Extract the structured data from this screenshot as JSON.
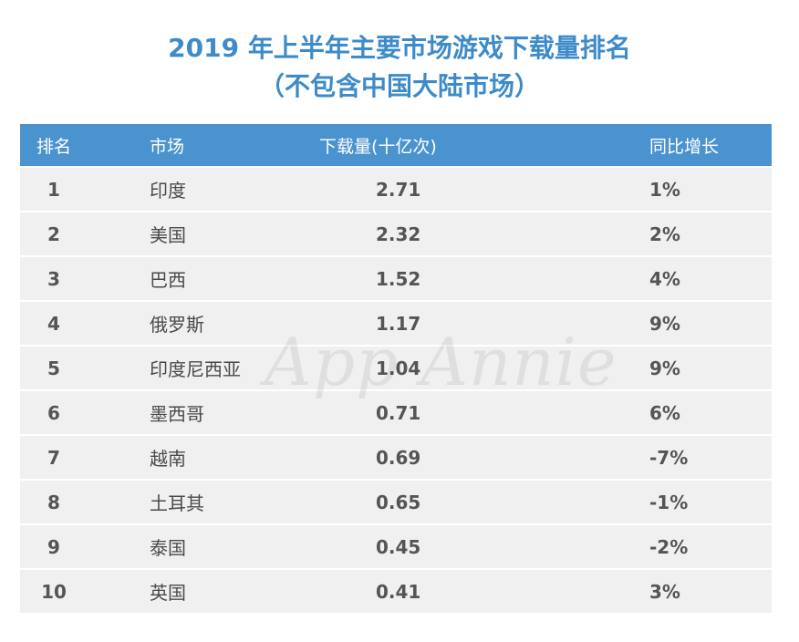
{
  "title_line1": "2019 年上半年主要市场游戏下载量排名",
  "title_line2": "（不包含中国大陆市场）",
  "watermark": "App Annie",
  "chart_data": {
    "type": "table",
    "columns": [
      "排名",
      "市场",
      "下载量(十亿次)",
      "同比增长"
    ],
    "rows": [
      {
        "rank": "1",
        "market": "印度",
        "downloads": "2.71",
        "growth": "1%"
      },
      {
        "rank": "2",
        "market": "美国",
        "downloads": "2.32",
        "growth": "2%"
      },
      {
        "rank": "3",
        "market": "巴西",
        "downloads": "1.52",
        "growth": "4%"
      },
      {
        "rank": "4",
        "market": "俄罗斯",
        "downloads": "1.17",
        "growth": "9%"
      },
      {
        "rank": "5",
        "market": "印度尼西亚",
        "downloads": "1.04",
        "growth": "9%"
      },
      {
        "rank": "6",
        "market": "墨西哥",
        "downloads": "0.71",
        "growth": "6%"
      },
      {
        "rank": "7",
        "market": "越南",
        "downloads": "0.69",
        "growth": "-7%"
      },
      {
        "rank": "8",
        "market": "土耳其",
        "downloads": "0.65",
        "growth": "-1%"
      },
      {
        "rank": "9",
        "market": "泰国",
        "downloads": "0.45",
        "growth": "-2%"
      },
      {
        "rank": "10",
        "market": "英国",
        "downloads": "0.41",
        "growth": "3%"
      }
    ]
  }
}
